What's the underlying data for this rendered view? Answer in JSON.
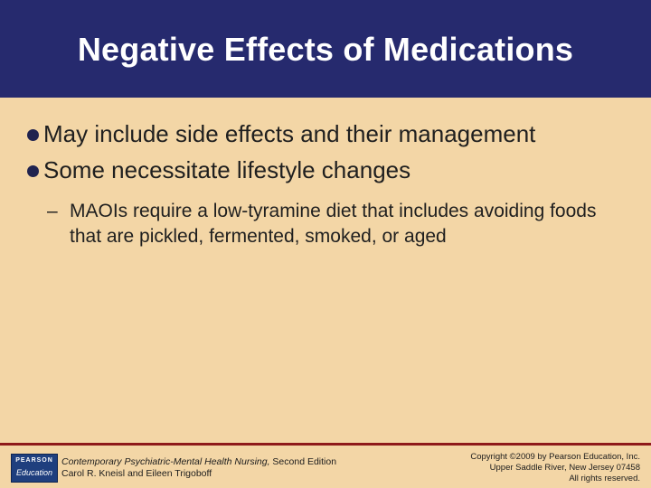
{
  "slide": {
    "title": "Negative Effects of Medications",
    "bullets": [
      "May include side effects and their management",
      "Some necessitate lifestyle changes"
    ],
    "sub_bullet": "MAOIs require a low-tyramine diet that includes avoiding foods that are pickled, fermented, smoked, or aged"
  },
  "footer": {
    "logo_top": "PEARSON",
    "logo_bottom": "Education",
    "book_title": "Contemporary Psychiatric-Mental Health Nursing,",
    "edition": " Second Edition",
    "authors": "Carol R. Kneisl and Eileen Trigoboff",
    "copyright_line1": "Copyright ©2009 by Pearson Education, Inc.",
    "copyright_line2": "Upper Saddle River, New Jersey 07458",
    "copyright_line3": "All rights reserved."
  },
  "colors": {
    "title_bar": "#262a6e",
    "background": "#f3d6a6",
    "rule": "#8e1a1a"
  }
}
